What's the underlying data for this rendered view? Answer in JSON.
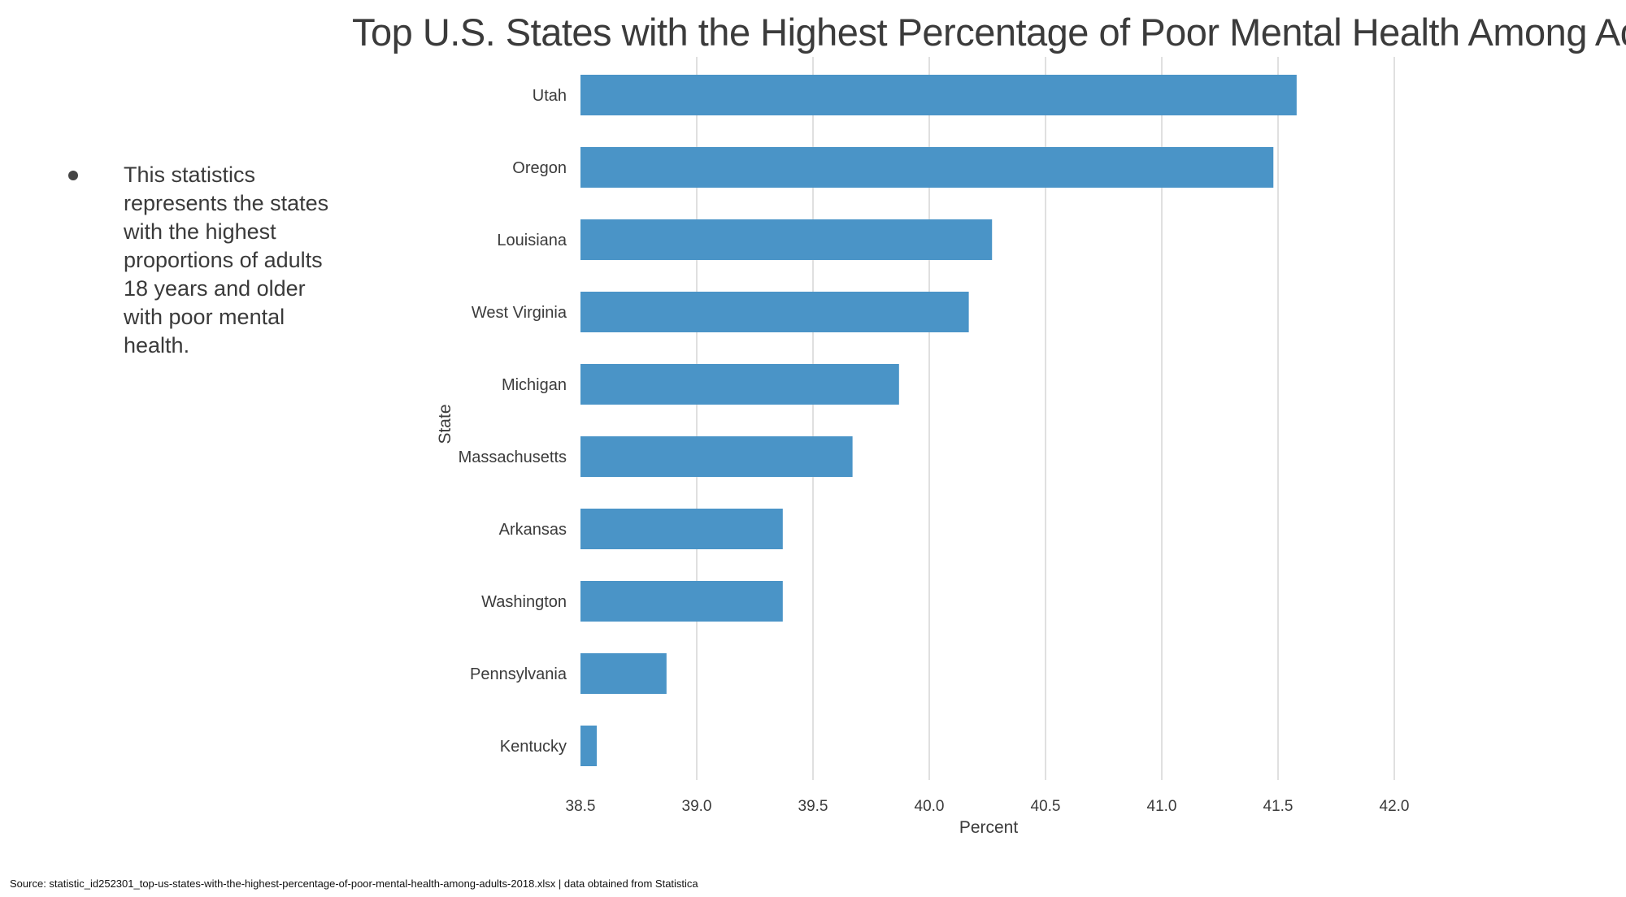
{
  "bullet": {
    "text": "This statistics represents the states with the highest proportions of adults 18 years and older with poor mental health."
  },
  "footer": {
    "source": "Source: statistic_id252301_top-us-states-with-the-highest-percentage-of-poor-mental-health-among-adults-2018.xlsx | data obtained from Statistica"
  },
  "colors": {
    "bar": "#4a94c7",
    "grid": "#d5d5d5",
    "text": "#3b3b3b"
  },
  "chart_data": {
    "type": "bar",
    "orientation": "horizontal",
    "title": "Top U.S. States with the Highest Percentage of Poor Mental Health Among Adults",
    "xlabel": "Percent",
    "ylabel": "State",
    "categories": [
      "Utah",
      "Oregon",
      "Louisiana",
      "West Virginia",
      "Michigan",
      "Massachusetts",
      "Arkansas",
      "Washington",
      "Pennsylvania",
      "Kentucky"
    ],
    "values": [
      41.58,
      41.48,
      40.27,
      40.17,
      39.87,
      39.67,
      39.37,
      39.37,
      38.87,
      38.57
    ],
    "xlim": [
      38.5,
      42.0
    ],
    "xticks": [
      "38.5",
      "39.0",
      "39.5",
      "40.0",
      "40.5",
      "41.0",
      "41.5",
      "42.0"
    ],
    "grid": "vertical",
    "legend": "none"
  }
}
